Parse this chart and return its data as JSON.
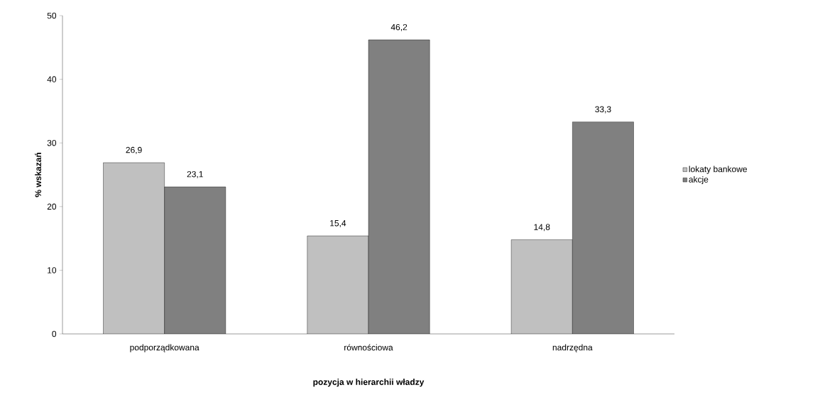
{
  "chart_data": {
    "type": "bar",
    "xlabel": "pozycja w hierarchii władzy",
    "ylabel": "% wskazań",
    "categories": [
      "podporządkowana",
      "równościowa",
      "nadrzędna"
    ],
    "series": [
      {
        "name": "lokaty bankowe",
        "color": "#c0c0c0",
        "values": [
          26.9,
          15.4,
          14.8
        ],
        "value_labels": [
          "26,9",
          "15,4",
          "14,8"
        ]
      },
      {
        "name": "akcje",
        "color": "#808080",
        "values": [
          23.1,
          46.2,
          33.3
        ],
        "value_labels": [
          "23,1",
          "46,2",
          "33,3"
        ]
      }
    ],
    "ylim": [
      0,
      50
    ],
    "yticks": [
      0,
      10,
      20,
      30,
      40,
      50
    ],
    "grid": false,
    "legend": "right"
  }
}
